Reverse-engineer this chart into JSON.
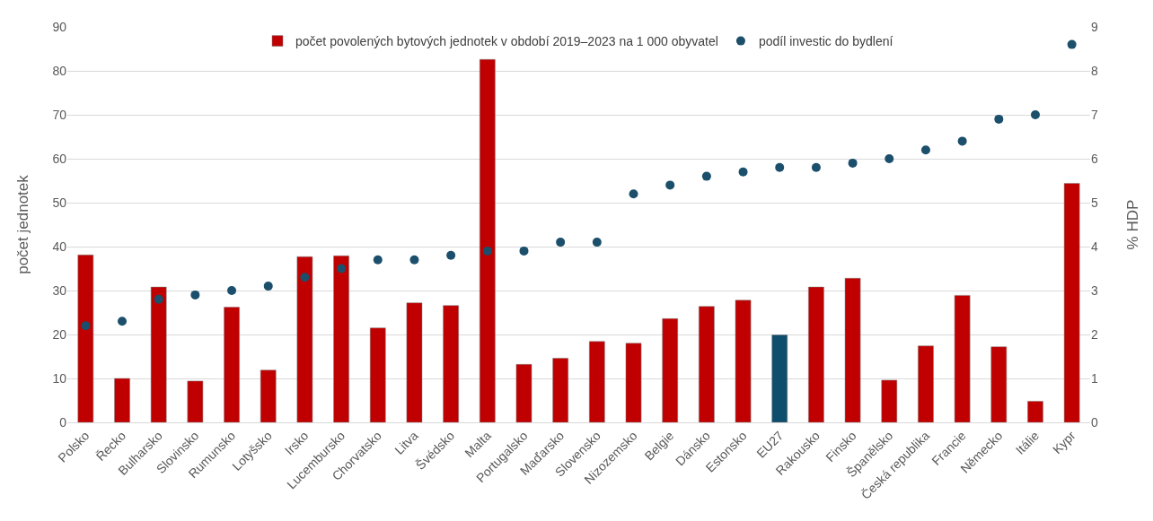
{
  "chart_data": {
    "type": "bar",
    "ylabel": "počet jednotek",
    "y2label": "% HDP",
    "categories": [
      "Polsko",
      "Řecko",
      "Bulharsko",
      "Slovinsko",
      "Rumunsko",
      "Lotyšsko",
      "Irsko",
      "Lucembursko",
      "Chorvatsko",
      "Litva",
      "Švédsko",
      "Malta",
      "Portugalsko",
      "Maďarsko",
      "Slovensko",
      "Nizozemsko",
      "Belgie",
      "Dánsko",
      "Estonsko",
      "EU27",
      "Rakousko",
      "Finsko",
      "Španělsko",
      "Česká republika",
      "Francie",
      "Německo",
      "Itálie",
      "Kypr"
    ],
    "series": [
      {
        "name": "počet povolených bytových jednotek v období 2019–2023 na 1 000 obyvatel",
        "color": "#c00000",
        "colors": [
          null,
          null,
          null,
          null,
          null,
          null,
          null,
          null,
          null,
          null,
          null,
          null,
          null,
          null,
          null,
          null,
          null,
          null,
          null,
          "#0e4d6b",
          null,
          null,
          null,
          null,
          null,
          null,
          null,
          null
        ],
        "values": [
          38.1,
          10.0,
          30.8,
          9.4,
          26.2,
          11.9,
          37.7,
          37.9,
          21.5,
          27.2,
          26.6,
          82.6,
          13.2,
          14.6,
          18.4,
          18.0,
          23.6,
          26.4,
          27.8,
          19.9,
          30.8,
          32.8,
          9.6,
          17.4,
          28.9,
          17.2,
          4.8,
          54.4
        ]
      },
      {
        "type": "scatter",
        "name": "podíl investic do bydlení",
        "color": "#1b4f6b",
        "axis": "y2",
        "marker": "circle",
        "values": [
          2.2,
          2.3,
          2.8,
          2.9,
          3.0,
          3.1,
          3.3,
          3.5,
          3.7,
          3.7,
          3.8,
          3.9,
          3.9,
          4.1,
          4.1,
          5.2,
          5.4,
          5.6,
          5.7,
          5.8,
          5.8,
          5.9,
          6.0,
          6.2,
          6.4,
          6.9,
          7.0,
          8.6
        ]
      }
    ],
    "ylim": [
      0,
      90
    ],
    "yticks": [
      0,
      10,
      20,
      30,
      40,
      50,
      60,
      70,
      80,
      90
    ],
    "y2lim": [
      0,
      9
    ],
    "y2ticks": [
      0,
      1,
      2,
      3,
      4,
      5,
      6,
      7,
      8,
      9
    ],
    "grid": "y",
    "legend": "top"
  }
}
